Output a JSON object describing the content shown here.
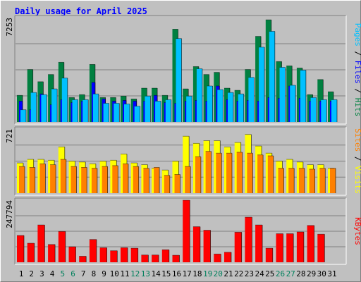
{
  "chart_data": [
    {
      "type": "bar",
      "title": "Daily usage for April 2025",
      "ymax_label": "7253",
      "ylim": [
        0,
        7253
      ],
      "categories": [
        "1",
        "2",
        "3",
        "4",
        "5",
        "6",
        "7",
        "8",
        "9",
        "10",
        "11",
        "12",
        "13",
        "14",
        "15",
        "16",
        "17",
        "18",
        "19",
        "20",
        "21",
        "22",
        "23",
        "24",
        "25",
        "26",
        "27",
        "28",
        "29",
        "30",
        "31"
      ],
      "weekend_days": [
        "5",
        "6",
        "12",
        "13",
        "19",
        "20",
        "26",
        "27"
      ],
      "series": [
        {
          "name": "Hits",
          "color": "#008040",
          "values": [
            1850,
            3650,
            2800,
            3300,
            4150,
            1700,
            1900,
            4000,
            1700,
            1700,
            1800,
            1600,
            2350,
            2350,
            1850,
            6450,
            2300,
            3850,
            3300,
            3450,
            2350,
            2200,
            3650,
            5950,
            7100,
            4200,
            3900,
            3750,
            1900,
            2950,
            2100
          ]
        },
        {
          "name": "Files",
          "color": "#0000ff",
          "values": [
            1450,
            850,
            1950,
            1200,
            1550,
            1350,
            1450,
            2750,
            1600,
            1450,
            1500,
            1450,
            1450,
            1850,
            1350,
            1300,
            1450,
            1500,
            1450,
            2500,
            1550,
            1450,
            1500,
            1450,
            1700,
            1650,
            2500,
            1650,
            1450,
            1450,
            1450
          ]
        },
        {
          "name": "Pages",
          "color": "#00c0ff",
          "values": [
            850,
            2050,
            1900,
            2300,
            3050,
            1550,
            1550,
            1950,
            1300,
            1300,
            1250,
            1100,
            1800,
            1450,
            1550,
            5800,
            1800,
            3700,
            2500,
            2250,
            2050,
            1950,
            3100,
            5200,
            6300,
            3800,
            2550,
            3600,
            1700,
            1550,
            1550
          ]
        }
      ]
    },
    {
      "type": "bar",
      "ymax_label": "721",
      "ylim": [
        0,
        721
      ],
      "series": [
        {
          "name": "Visits",
          "color": "#ffff00",
          "values": [
            340,
            380,
            380,
            370,
            520,
            360,
            350,
            330,
            360,
            370,
            440,
            340,
            320,
            280,
            260,
            360,
            640,
            560,
            590,
            590,
            520,
            570,
            660,
            530,
            450,
            360,
            380,
            350,
            320,
            320,
            280
          ]
        },
        {
          "name": "Sites",
          "color": "#ff8000",
          "values": [
            300,
            290,
            330,
            320,
            380,
            300,
            290,
            280,
            300,
            310,
            330,
            300,
            280,
            290,
            200,
            210,
            300,
            410,
            470,
            450,
            450,
            460,
            450,
            430,
            420,
            280,
            280,
            280,
            270,
            280,
            280
          ]
        }
      ]
    },
    {
      "type": "bar",
      "ymax_label": "247794",
      "ylim": [
        0,
        247794
      ],
      "series": [
        {
          "name": "KBytes",
          "color": "#ff0000",
          "values": [
            107000,
            76000,
            149000,
            71000,
            123000,
            62000,
            24000,
            91000,
            58000,
            46000,
            58000,
            56000,
            29000,
            29000,
            50000,
            28000,
            247794,
            142000,
            128000,
            33000,
            40000,
            120000,
            180000,
            149000,
            56000,
            114000,
            114000,
            121000,
            147000,
            112000,
            0
          ]
        }
      ]
    }
  ],
  "axis": {
    "right_label_top": [
      "Pages",
      " / ",
      "Files",
      " / ",
      "Hits"
    ],
    "right_label_mid": [
      "Sites",
      " / ",
      "Visits"
    ],
    "right_label_bot": [
      "KBytes"
    ]
  },
  "colors": {
    "background": "#c0c0c0",
    "title": "#0000ff",
    "weekday_label": "#000000",
    "weekend_label": "#00805c",
    "grid": "#808080"
  }
}
